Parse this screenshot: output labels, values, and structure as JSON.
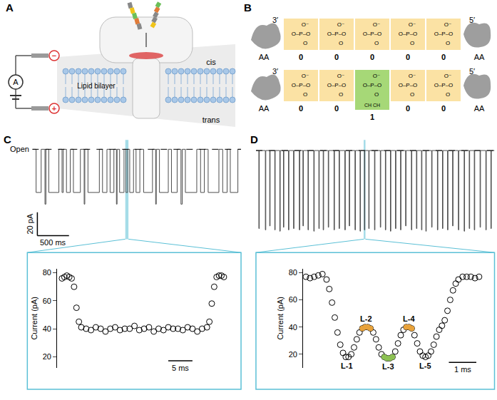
{
  "diagram_a": {
    "label": "A",
    "ammeter": "A",
    "minus": "−",
    "plus": "+",
    "membrane": "Lipid bilayer",
    "cis": "cis",
    "trans": "trans"
  },
  "diagram_b": {
    "label": "B",
    "end_left": "3′",
    "end_right": "5′",
    "anchor": "AA",
    "phosphate": [
      "O⁻",
      "O–P–O",
      "O"
    ],
    "spacer_mod": "CH CH",
    "code_colors": [
      "#fbe2a4",
      "#a6d877"
    ],
    "rows": [
      [
        0,
        0,
        0,
        0,
        0
      ],
      [
        0,
        0,
        1,
        0,
        0
      ]
    ]
  },
  "chart_data": [
    {
      "title": "C",
      "type": "line",
      "color": "#4d4d4d",
      "open_label": "Open",
      "open_level": 77,
      "xlim": [
        0,
        3300
      ],
      "ylim": [
        0,
        85
      ],
      "tick_labels": false,
      "highlight": [
        1470,
        1520
      ],
      "scale_bars": [
        {
          "label": "20 pA",
          "axis": "y",
          "value": 20
        },
        {
          "label": "500 ms",
          "axis": "x",
          "value": 500
        }
      ],
      "events": [
        [
          60,
          140,
          40
        ],
        [
          200,
          215,
          30
        ],
        [
          260,
          420,
          40
        ],
        [
          470,
          490,
          40
        ],
        [
          540,
          600,
          40
        ],
        [
          650,
          760,
          40
        ],
        [
          820,
          830,
          30
        ],
        [
          880,
          1060,
          40
        ],
        [
          1110,
          1180,
          40
        ],
        [
          1230,
          1290,
          40
        ],
        [
          1330,
          1340,
          30
        ],
        [
          1380,
          1450,
          40
        ],
        [
          1480,
          1508,
          40
        ],
        [
          1540,
          1600,
          40
        ],
        [
          1640,
          1700,
          40
        ],
        [
          1760,
          1900,
          40
        ],
        [
          1950,
          1960,
          30
        ],
        [
          2010,
          2150,
          40
        ],
        [
          2200,
          2290,
          40
        ],
        [
          2350,
          2370,
          30
        ],
        [
          2420,
          2600,
          40
        ],
        [
          2660,
          2720,
          40
        ],
        [
          2780,
          2950,
          40
        ],
        [
          3010,
          3080,
          40
        ],
        [
          3130,
          3250,
          40
        ]
      ]
    },
    {
      "title": "D",
      "type": "line",
      "color": "#4d4d4d",
      "open_level": 77,
      "xlim": [
        0,
        3300
      ],
      "ylim": [
        10,
        85
      ],
      "tick_labels": false,
      "highlight": [
        1490,
        1515
      ],
      "events": [
        [
          40,
          46,
          18
        ],
        [
          130,
          136,
          17
        ],
        [
          190,
          196,
          20
        ],
        [
          260,
          266,
          17
        ],
        [
          330,
          336,
          16
        ],
        [
          380,
          386,
          19
        ],
        [
          450,
          456,
          17
        ],
        [
          520,
          526,
          18
        ],
        [
          600,
          606,
          17
        ],
        [
          650,
          656,
          20
        ],
        [
          720,
          726,
          17
        ],
        [
          800,
          806,
          16
        ],
        [
          870,
          876,
          18
        ],
        [
          930,
          936,
          17
        ],
        [
          1000,
          1006,
          19
        ],
        [
          1080,
          1086,
          17
        ],
        [
          1150,
          1156,
          18
        ],
        [
          1230,
          1236,
          17
        ],
        [
          1290,
          1296,
          20
        ],
        [
          1370,
          1376,
          17
        ],
        [
          1440,
          1446,
          16
        ],
        [
          1500,
          1506,
          17
        ],
        [
          1560,
          1566,
          18
        ],
        [
          1640,
          1646,
          17
        ],
        [
          1720,
          1726,
          19
        ],
        [
          1790,
          1796,
          17
        ],
        [
          1860,
          1866,
          16
        ],
        [
          1930,
          1936,
          18
        ],
        [
          2000,
          2006,
          17
        ],
        [
          2070,
          2076,
          20
        ],
        [
          2150,
          2156,
          17
        ],
        [
          2220,
          2226,
          18
        ],
        [
          2290,
          2296,
          17
        ],
        [
          2350,
          2356,
          16
        ],
        [
          2430,
          2436,
          19
        ],
        [
          2510,
          2516,
          17
        ],
        [
          2580,
          2586,
          18
        ],
        [
          2650,
          2656,
          17
        ],
        [
          2720,
          2726,
          20
        ],
        [
          2800,
          2806,
          17
        ],
        [
          2880,
          2886,
          16
        ],
        [
          2950,
          2956,
          18
        ],
        [
          3020,
          3026,
          17
        ],
        [
          3100,
          3106,
          19
        ],
        [
          3180,
          3186,
          17
        ],
        [
          3250,
          3256,
          18
        ]
      ]
    },
    {
      "type": "scatter",
      "marker": "circle-open",
      "color": "#000000",
      "y_label": "Current (pA)",
      "xlim": [
        -1,
        35
      ],
      "ylim": [
        12,
        83
      ],
      "yticks": [
        20,
        40,
        60,
        80
      ],
      "tick_labels": "y",
      "scale_bars": [
        {
          "label": "5 ms",
          "axis": "x",
          "value": 5
        }
      ],
      "x": [
        0,
        0.5,
        1,
        1.5,
        2,
        2.5,
        3,
        3.5,
        4,
        5,
        6,
        7,
        8,
        9,
        10,
        11,
        12,
        13,
        14,
        15,
        16,
        17,
        18,
        19,
        20,
        21,
        22,
        23,
        24,
        25,
        26,
        27,
        28,
        29,
        30,
        30.5,
        31,
        31.5,
        32,
        32.5,
        33,
        33.5
      ],
      "values": [
        76,
        77,
        78,
        77,
        76,
        70,
        55,
        45,
        41,
        40,
        39,
        41,
        40,
        38,
        40,
        41,
        39,
        40,
        40,
        42,
        39,
        40,
        41,
        38,
        40,
        39,
        41,
        40,
        40,
        39,
        41,
        40,
        38,
        40,
        41,
        45,
        58,
        70,
        77,
        78,
        78,
        77
      ]
    },
    {
      "type": "scatter",
      "y_label": "Current (pA)",
      "xlim": [
        -0.1,
        6.5
      ],
      "ylim": [
        10,
        83
      ],
      "yticks": [
        20,
        40,
        60,
        80
      ],
      "tick_labels": "y",
      "scale_bars": [
        {
          "label": "1 ms",
          "axis": "x",
          "value": 1
        }
      ],
      "series": [
        {
          "color": "#000000",
          "marker": "circle-open",
          "x": [
            0,
            0.15,
            0.3,
            0.45,
            0.6,
            0.75,
            0.85,
            0.95,
            1.05,
            1.15,
            1.25,
            1.35,
            1.45,
            1.55,
            1.65,
            1.75,
            1.85,
            1.95,
            2.05,
            2.15,
            2.25,
            2.35,
            2.45,
            2.55,
            2.65,
            2.75,
            2.85,
            2.95,
            3.05,
            3.15,
            3.25,
            3.35,
            3.45,
            3.55,
            3.65,
            3.75,
            3.85,
            3.95,
            4.05,
            4.15,
            4.25,
            4.35,
            4.45,
            4.55,
            4.65,
            4.75,
            4.85,
            4.95,
            5.05,
            5.15,
            5.25,
            5.35,
            5.45,
            5.55,
            5.7,
            5.85,
            6.0,
            6.15,
            6.3
          ],
          "values": [
            77,
            76,
            77,
            78,
            79,
            75,
            68,
            58,
            47,
            36,
            27,
            21,
            18,
            18,
            20,
            25,
            31,
            36,
            39,
            40,
            40,
            39,
            36,
            31,
            25,
            20,
            18,
            17,
            17,
            18,
            22,
            28,
            34,
            38,
            40,
            40,
            39,
            34,
            28,
            22,
            19,
            18,
            19,
            22,
            27,
            33,
            38,
            41,
            45,
            52,
            60,
            67,
            72,
            75,
            77,
            77,
            77,
            76,
            77
          ]
        },
        {
          "color": "#e8a23a",
          "marker": "circle",
          "x": [
            2.05,
            2.15,
            2.25,
            2.35,
            3.65,
            3.75,
            3.85
          ],
          "values": [
            39,
            40,
            40,
            39,
            40,
            40,
            39
          ]
        },
        {
          "color": "#8cc152",
          "marker": "circle",
          "x": [
            2.85,
            2.95,
            3.05,
            3.15
          ],
          "values": [
            18,
            17,
            17,
            18
          ]
        }
      ],
      "annotations": [
        {
          "text": "L-1",
          "x": 1.5,
          "y": 17,
          "anchor": "top"
        },
        {
          "text": "L-2",
          "x": 2.2,
          "y": 41,
          "anchor": "bottom"
        },
        {
          "text": "L-3",
          "x": 3.0,
          "y": 16,
          "anchor": "top"
        },
        {
          "text": "L-4",
          "x": 3.75,
          "y": 41,
          "anchor": "bottom"
        },
        {
          "text": "L-5",
          "x": 4.35,
          "y": 17,
          "anchor": "top"
        }
      ]
    }
  ]
}
